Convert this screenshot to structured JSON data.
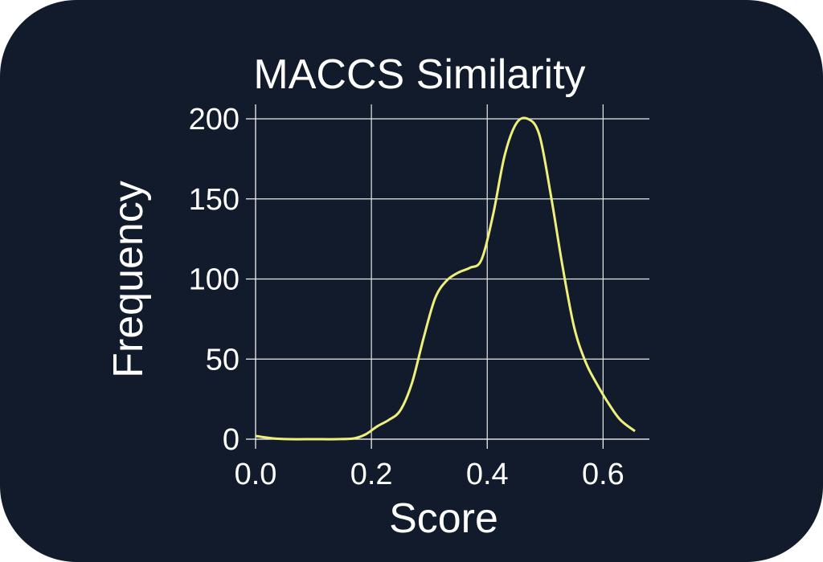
{
  "chart_data": {
    "type": "line",
    "title": "MACCS Similarity",
    "xlabel": "Score",
    "ylabel": "Frequency",
    "xlim": [
      0.0,
      0.68
    ],
    "ylim": [
      0,
      200
    ],
    "grid": true,
    "x_ticks": [
      {
        "value": 0.0,
        "label": "0.0"
      },
      {
        "value": 0.2,
        "label": "0.2"
      },
      {
        "value": 0.4,
        "label": "0.4"
      },
      {
        "value": 0.6,
        "label": "0.6"
      }
    ],
    "y_ticks": [
      {
        "value": 0,
        "label": "0"
      },
      {
        "value": 50,
        "label": "50"
      },
      {
        "value": 100,
        "label": "100"
      },
      {
        "value": 150,
        "label": "150"
      },
      {
        "value": 200,
        "label": "200"
      }
    ],
    "line_color": "#eef07a",
    "series": [
      {
        "x": [
          0.0,
          0.03,
          0.06,
          0.1,
          0.14,
          0.17,
          0.19,
          0.21,
          0.23,
          0.25,
          0.27,
          0.29,
          0.31,
          0.33,
          0.35,
          0.37,
          0.39,
          0.41,
          0.43,
          0.45,
          0.47,
          0.49,
          0.51,
          0.53,
          0.55,
          0.57,
          0.59,
          0.61,
          0.63,
          0.655
        ],
        "y": [
          2,
          0.5,
          0,
          0,
          0,
          0.5,
          3,
          8,
          12,
          18,
          35,
          63,
          88,
          99,
          104,
          107,
          112,
          140,
          177,
          197,
          200,
          190,
          152,
          108,
          70,
          48,
          34,
          22,
          12,
          5
        ]
      }
    ]
  }
}
